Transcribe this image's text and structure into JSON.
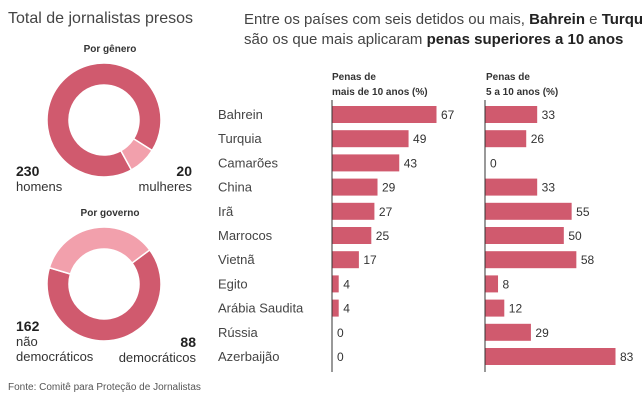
{
  "left_title": "Total de jornalistas presos",
  "right_title": {
    "line1_prefix": "Entre os países com seis detidos ou mais, ",
    "bold1": "Bahrein",
    "and": " e ",
    "bold2": "Turquia",
    "line2_prefix": "são os que mais aplicaram ",
    "bold3": "penas superiores a 10 anos"
  },
  "source": "Fonte: Comitê para Proteção de Jornalistas",
  "colors": {
    "dark": "#d05a6e",
    "light": "#f2a0ac",
    "axis": "#333333"
  },
  "chart_data": [
    {
      "type": "pie",
      "subtitle": "Por gênero",
      "slices": [
        {
          "label": "homens",
          "value": 230,
          "color": "#d05a6e"
        },
        {
          "label": "mulheres",
          "value": 20,
          "color": "#f2a0ac"
        }
      ]
    },
    {
      "type": "pie",
      "subtitle": "Por governo",
      "slices": [
        {
          "label": "não democráticos",
          "value": 162,
          "color": "#d05a6e"
        },
        {
          "label": "democráticos",
          "value": 88,
          "color": "#f2a0ac"
        }
      ]
    },
    {
      "type": "bar",
      "orientation": "horizontal",
      "categories": [
        "Bahrein",
        "Turquia",
        "Camarões",
        "China",
        "Irã",
        "Marrocos",
        "Vietnã",
        "Egito",
        "Arábia Saudita",
        "Rússia",
        "Azerbaijão"
      ],
      "series": [
        {
          "name": "Penas de mais de 10 anos (%)",
          "values": [
            67,
            49,
            43,
            29,
            27,
            25,
            17,
            4,
            4,
            0,
            0
          ]
        },
        {
          "name": "Penas de 5 a 10 anos (%)",
          "values": [
            33,
            26,
            0,
            33,
            55,
            50,
            58,
            8,
            12,
            29,
            83
          ]
        }
      ]
    }
  ],
  "labels": {
    "donut1": {
      "left_value": "230",
      "left_label": "homens",
      "right_value": "20",
      "right_label": "mulheres"
    },
    "donut2": {
      "left_value": "162",
      "left_label_1": "não",
      "left_label_2": "democráticos",
      "right_value": "88",
      "right_label": "democráticos"
    },
    "col1_head": [
      "Penas de",
      "mais de 10 anos (%)"
    ],
    "col2_head": [
      "Penas de",
      "5 a 10 anos (%)"
    ]
  }
}
